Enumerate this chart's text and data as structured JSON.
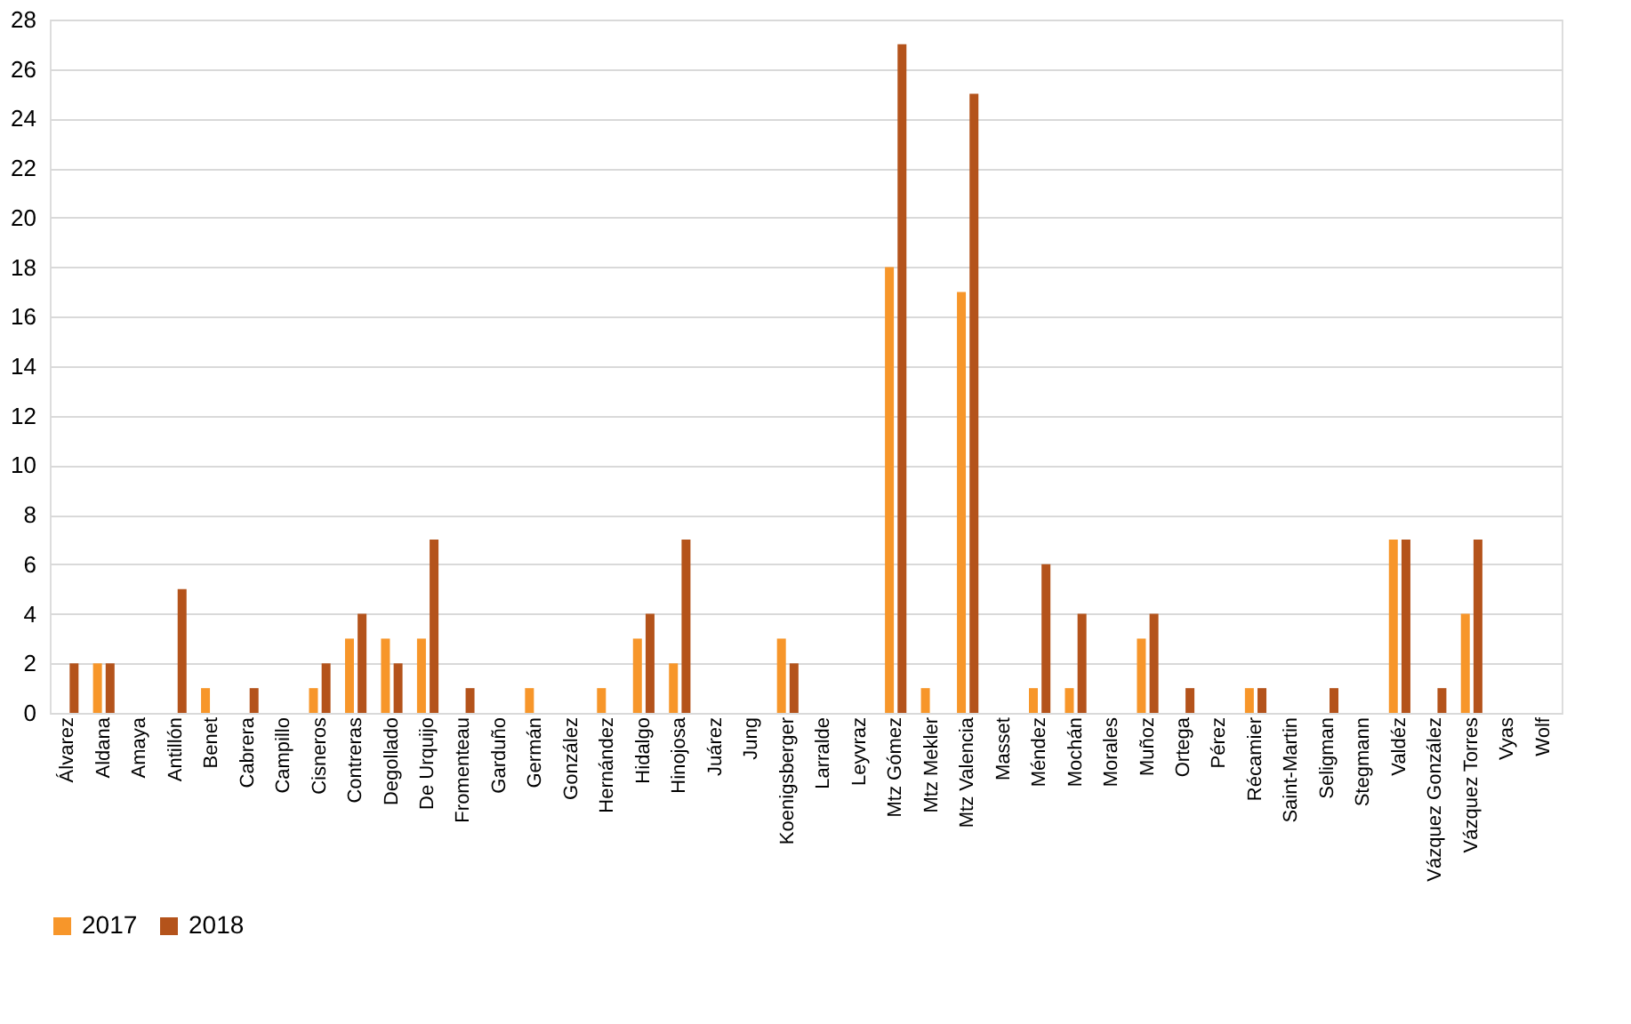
{
  "chart_data": {
    "type": "bar",
    "categories": [
      "Álvarez",
      "Aldana",
      "Amaya",
      "Antillón",
      "Benet",
      "Cabrera",
      "Campillo",
      "Cisneros",
      "Contreras",
      "Degollado",
      "De Urquijo",
      "Fromenteau",
      "Garduño",
      "Germán",
      "González",
      "Hernández",
      "Hidalgo",
      "Hinojosa",
      "Juárez",
      "Jung",
      "Koenigsberger",
      "Larralde",
      "Leyvraz",
      "Mtz Gómez",
      "Mtz Mekler",
      "Mtz Valencia",
      "Masset",
      "Méndez",
      "Mochán",
      "Morales",
      "Muñoz",
      "Ortega",
      "Pérez",
      "Récamier",
      "Saint-Martin",
      "Seligman",
      "Stegmann",
      "Valdéz",
      "Vázquez González",
      "Vázquez Torres",
      "Vyas",
      "Wolf"
    ],
    "series": [
      {
        "name": "2017",
        "color": "#f7962a",
        "values": [
          0,
          2,
          0,
          0,
          1,
          0,
          0,
          1,
          3,
          3,
          3,
          0,
          0,
          1,
          0,
          1,
          3,
          2,
          0,
          0,
          3,
          0,
          0,
          18,
          1,
          17,
          0,
          1,
          1,
          0,
          3,
          0,
          0,
          1,
          0,
          0,
          0,
          7,
          0,
          4,
          0,
          0
        ]
      },
      {
        "name": "2018",
        "color": "#b4531b",
        "values": [
          2,
          2,
          0,
          5,
          0,
          1,
          0,
          2,
          4,
          2,
          7,
          1,
          0,
          0,
          0,
          0,
          4,
          7,
          0,
          0,
          2,
          0,
          0,
          27,
          0,
          25,
          0,
          6,
          4,
          0,
          4,
          1,
          0,
          1,
          0,
          1,
          0,
          7,
          1,
          7,
          0,
          0
        ]
      }
    ],
    "ylim": [
      0,
      28
    ],
    "yticks": [
      0,
      2,
      4,
      6,
      8,
      10,
      12,
      14,
      16,
      18,
      20,
      22,
      24,
      26,
      28
    ],
    "grid": "y",
    "legend": "bottom"
  }
}
